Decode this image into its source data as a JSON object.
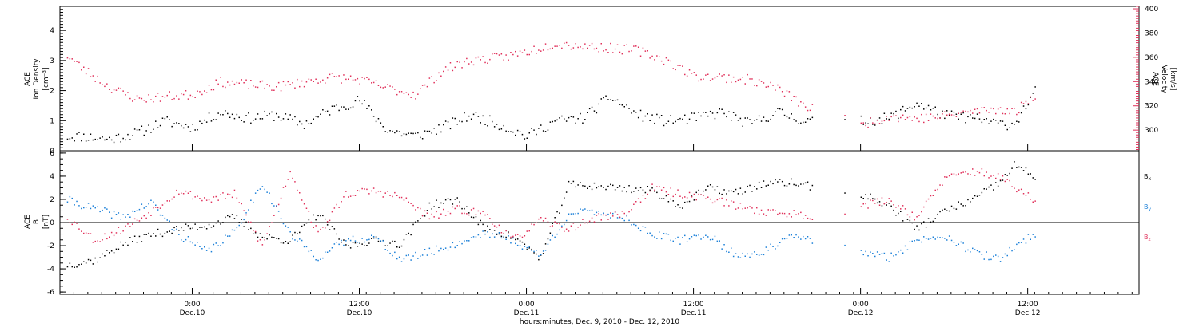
{
  "colors": {
    "density": "#000000",
    "velocity": "#e0305a",
    "bx": "#000000",
    "by": "#1a7fd8",
    "bz": "#e0305a",
    "axis": "#000000"
  },
  "chart_data": [
    {
      "type": "scatter",
      "panel": "top",
      "ylabel": [
        "ACE",
        "Ion Density",
        "[cm⁻³]"
      ],
      "y2label": [
        "ACE",
        "Velocity",
        "[km/s]"
      ],
      "ylim": [
        0,
        4.8
      ],
      "yticks": [
        0,
        1,
        2,
        3,
        4
      ],
      "ytick_labels": [
        "0",
        "1",
        "2",
        "3",
        "4"
      ],
      "y2lim": [
        283,
        402
      ],
      "y2ticks": [
        300,
        320,
        340,
        360,
        380,
        400
      ],
      "y2tick_labels": [
        "300",
        "320",
        "340",
        "360",
        "380",
        "400"
      ],
      "series": [
        {
          "key": "density",
          "axis": "left",
          "x": [
            "2010-12-09T15:00",
            "2010-12-09T16:00",
            "2010-12-09T18:00",
            "2010-12-09T20:00",
            "2010-12-09T22:00",
            "2010-12-10T00:00",
            "2010-12-10T02:00",
            "2010-12-10T04:00",
            "2010-12-10T06:00",
            "2010-12-10T08:00",
            "2010-12-10T10:00",
            "2010-12-10T12:00",
            "2010-12-10T14:00",
            "2010-12-10T16:00",
            "2010-12-10T18:00",
            "2010-12-10T20:00",
            "2010-12-10T22:00",
            "2010-12-11T00:00",
            "2010-12-11T02:00",
            "2010-12-11T04:00",
            "2010-12-11T06:00",
            "2010-12-11T08:00",
            "2010-12-11T10:00",
            "2010-12-11T12:00",
            "2010-12-11T14:00",
            "2010-12-11T16:00",
            "2010-12-11T18:00",
            "2010-12-11T20:00",
            "2010-12-12T00:00",
            "2010-12-12T02:00",
            "2010-12-12T04:00",
            "2010-12-12T06:00",
            "2010-12-12T08:00",
            "2010-12-12T10:00",
            "2010-12-12T11:00",
            "2010-12-12T12:30"
          ],
          "y": [
            0.5,
            0.5,
            0.4,
            0.6,
            1.0,
            0.8,
            1.3,
            1.1,
            1.2,
            0.9,
            1.4,
            1.7,
            0.7,
            0.5,
            0.8,
            1.2,
            0.9,
            0.5,
            1.0,
            1.1,
            1.8,
            1.2,
            1.0,
            1.1,
            1.3,
            0.9,
            1.3,
            1.0,
            1.0,
            1.1,
            1.6,
            1.2,
            1.1,
            0.9,
            0.9,
            2.0
          ]
        },
        {
          "key": "velocity",
          "axis": "right",
          "x": [
            "2010-12-09T15:00",
            "2010-12-09T16:00",
            "2010-12-09T18:00",
            "2010-12-09T20:00",
            "2010-12-09T22:00",
            "2010-12-10T00:00",
            "2010-12-10T02:00",
            "2010-12-10T04:00",
            "2010-12-10T06:00",
            "2010-12-10T08:00",
            "2010-12-10T10:00",
            "2010-12-10T12:00",
            "2010-12-10T14:00",
            "2010-12-10T16:00",
            "2010-12-10T18:00",
            "2010-12-10T20:00",
            "2010-12-10T22:00",
            "2010-12-11T00:00",
            "2010-12-11T02:00",
            "2010-12-11T04:00",
            "2010-12-11T06:00",
            "2010-12-11T08:00",
            "2010-12-11T10:00",
            "2010-12-11T12:00",
            "2010-12-11T14:00",
            "2010-12-11T16:00",
            "2010-12-11T18:00",
            "2010-12-11T20:00",
            "2010-12-12T00:00",
            "2010-12-12T02:00",
            "2010-12-12T04:00",
            "2010-12-12T06:00",
            "2010-12-12T08:00",
            "2010-12-12T10:00",
            "2010-12-12T11:00",
            "2010-12-12T12:30"
          ],
          "y": [
            362,
            352,
            336,
            326,
            328,
            330,
            340,
            338,
            336,
            340,
            344,
            342,
            335,
            330,
            350,
            358,
            360,
            365,
            372,
            370,
            368,
            366,
            358,
            345,
            344,
            342,
            335,
            320,
            305,
            312,
            310,
            312,
            316,
            318,
            315,
            330
          ]
        }
      ]
    },
    {
      "type": "scatter",
      "panel": "bottom",
      "ylabel": [
        "ACE",
        "B",
        "[nT]"
      ],
      "ylim": [
        -6.2,
        6.2
      ],
      "yticks": [
        -6,
        -4,
        -2,
        0,
        2,
        4,
        6
      ],
      "ytick_labels": [
        "-6",
        "-4",
        "-2",
        "0",
        "2",
        "4",
        "6"
      ],
      "xlabel": "hours:minutes, Dec. 9, 2010 - Dec. 12, 2010",
      "xlim": [
        "2010-12-09T14:30",
        "2010-12-12T20:00"
      ],
      "xticks": [
        {
          "time": "2010-12-10T00:00",
          "line1": "0:00",
          "line2": "Dec.10"
        },
        {
          "time": "2010-12-10T12:00",
          "line1": "12:00",
          "line2": "Dec.10"
        },
        {
          "time": "2010-12-11T00:00",
          "line1": "0:00",
          "line2": "Dec.11"
        },
        {
          "time": "2010-12-11T12:00",
          "line1": "12:00",
          "line2": "Dec.11"
        },
        {
          "time": "2010-12-12T00:00",
          "line1": "0:00",
          "line2": "Dec.12"
        },
        {
          "time": "2010-12-12T12:00",
          "line1": "12:00",
          "line2": "Dec.12"
        }
      ],
      "series": [
        {
          "key": "bx",
          "name": "Bx",
          "x": [
            "2010-12-09T15:00",
            "2010-12-09T17:00",
            "2010-12-09T19:00",
            "2010-12-09T21:00",
            "2010-12-09T23:00",
            "2010-12-10T01:00",
            "2010-12-10T03:00",
            "2010-12-10T05:00",
            "2010-12-10T07:00",
            "2010-12-10T09:00",
            "2010-12-10T11:00",
            "2010-12-10T13:00",
            "2010-12-10T15:00",
            "2010-12-10T17:00",
            "2010-12-10T19:00",
            "2010-12-10T21:00",
            "2010-12-10T23:00",
            "2010-12-11T01:00",
            "2010-12-11T03:00",
            "2010-12-11T05:00",
            "2010-12-11T07:00",
            "2010-12-11T09:00",
            "2010-12-11T11:00",
            "2010-12-11T13:00",
            "2010-12-11T15:00",
            "2010-12-11T17:00",
            "2010-12-11T19:00",
            "2010-12-11T21:00",
            "2010-12-12T00:00",
            "2010-12-12T02:00",
            "2010-12-12T04:00",
            "2010-12-12T06:00",
            "2010-12-12T08:00",
            "2010-12-12T10:00",
            "2010-12-12T11:00",
            "2010-12-12T12:30"
          ],
          "y": [
            -3.6,
            -3.2,
            -1.8,
            -1.0,
            -0.5,
            -0.2,
            0.5,
            -1.2,
            -1.5,
            0.8,
            -2.0,
            -1.5,
            -1.8,
            1.5,
            2.0,
            -0.5,
            -1.2,
            -3.0,
            3.3,
            3.2,
            3.0,
            2.8,
            1.5,
            3.0,
            2.6,
            3.4,
            3.5,
            3.0,
            2.5,
            1.5,
            -0.5,
            1.0,
            2.0,
            3.5,
            5.0,
            4.0
          ]
        },
        {
          "key": "by",
          "name": "By",
          "x": [
            "2010-12-09T15:00",
            "2010-12-09T17:00",
            "2010-12-09T19:00",
            "2010-12-09T21:00",
            "2010-12-09T23:00",
            "2010-12-10T01:00",
            "2010-12-10T03:00",
            "2010-12-10T05:00",
            "2010-12-10T07:00",
            "2010-12-10T09:00",
            "2010-12-10T11:00",
            "2010-12-10T13:00",
            "2010-12-10T15:00",
            "2010-12-10T17:00",
            "2010-12-10T19:00",
            "2010-12-10T21:00",
            "2010-12-10T23:00",
            "2010-12-11T01:00",
            "2010-12-11T03:00",
            "2010-12-11T05:00",
            "2010-12-11T07:00",
            "2010-12-11T09:00",
            "2010-12-11T11:00",
            "2010-12-11T13:00",
            "2010-12-11T15:00",
            "2010-12-11T17:00",
            "2010-12-11T19:00",
            "2010-12-11T21:00",
            "2010-12-12T00:00",
            "2010-12-12T02:00",
            "2010-12-12T04:00",
            "2010-12-12T06:00",
            "2010-12-12T08:00",
            "2010-12-12T10:00",
            "2010-12-12T11:00",
            "2010-12-12T12:30"
          ],
          "y": [
            2.0,
            1.2,
            0.5,
            1.8,
            -1.0,
            -2.5,
            -0.8,
            3.5,
            -1.0,
            -3.0,
            -1.5,
            -1.2,
            -3.2,
            -2.5,
            -1.8,
            -0.8,
            -1.5,
            -2.8,
            0.8,
            1.0,
            0.5,
            -1.0,
            -1.5,
            -1.0,
            -2.8,
            -2.5,
            -1.2,
            -1.5,
            -2.5,
            -3.0,
            -1.5,
            -1.0,
            -2.5,
            -3.2,
            -2.0,
            -1.0
          ]
        },
        {
          "key": "bz",
          "name": "Bz",
          "x": [
            "2010-12-09T15:00",
            "2010-12-09T17:00",
            "2010-12-09T19:00",
            "2010-12-09T21:00",
            "2010-12-09T23:00",
            "2010-12-10T01:00",
            "2010-12-10T03:00",
            "2010-12-10T05:00",
            "2010-12-10T07:00",
            "2010-12-10T09:00",
            "2010-12-10T11:00",
            "2010-12-10T13:00",
            "2010-12-10T15:00",
            "2010-12-10T17:00",
            "2010-12-10T19:00",
            "2010-12-10T21:00",
            "2010-12-10T23:00",
            "2010-12-11T01:00",
            "2010-12-11T03:00",
            "2010-12-11T05:00",
            "2010-12-11T07:00",
            "2010-12-11T09:00",
            "2010-12-11T11:00",
            "2010-12-11T13:00",
            "2010-12-11T15:00",
            "2010-12-11T17:00",
            "2010-12-11T19:00",
            "2010-12-11T21:00",
            "2010-12-12T00:00",
            "2010-12-12T02:00",
            "2010-12-12T04:00",
            "2010-12-12T06:00",
            "2010-12-12T08:00",
            "2010-12-12T10:00",
            "2010-12-12T11:00",
            "2010-12-12T12:30"
          ],
          "y": [
            0.5,
            -1.5,
            -0.5,
            1.0,
            2.8,
            2.0,
            2.5,
            -2.0,
            4.5,
            -1.0,
            2.5,
            2.8,
            2.2,
            0.5,
            1.2,
            0.8,
            -1.5,
            0.2,
            -0.5,
            0.5,
            0.8,
            3.0,
            2.5,
            2.2,
            1.5,
            1.0,
            0.8,
            0.5,
            1.5,
            2.0,
            0.5,
            3.8,
            4.5,
            4.0,
            3.0,
            2.0
          ]
        }
      ]
    }
  ]
}
